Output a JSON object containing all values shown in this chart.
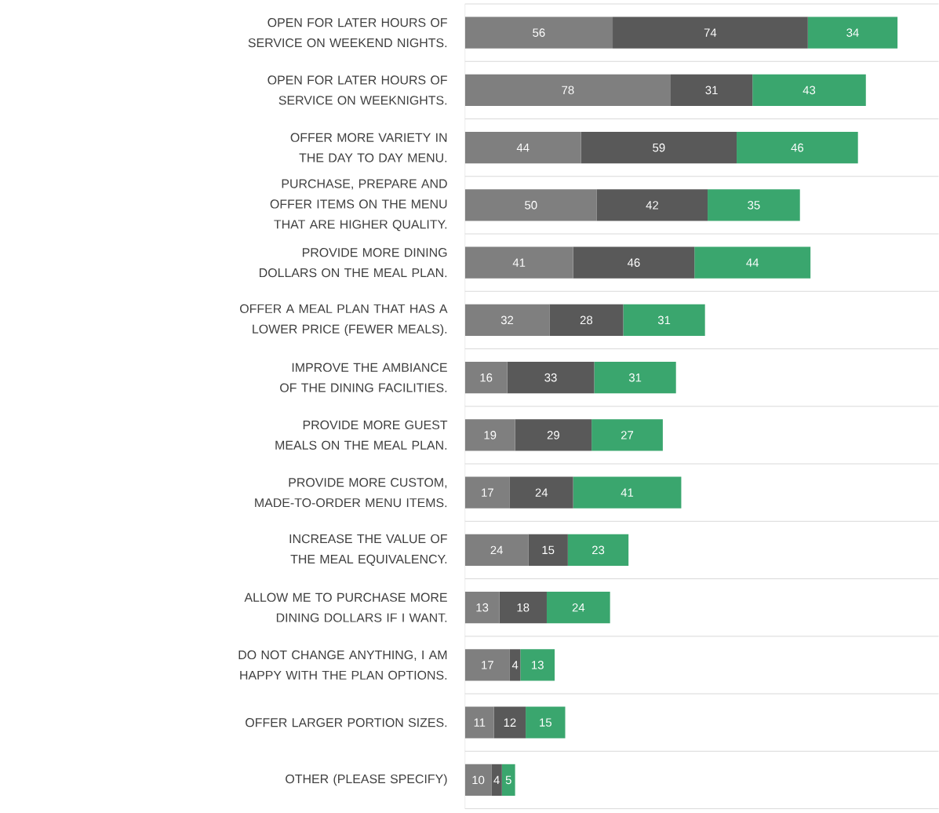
{
  "chart_data": {
    "type": "bar",
    "orientation": "horizontal",
    "stacked": true,
    "data_labels": true,
    "grid": "y",
    "categories": [
      "OPEN FOR LATER HOURS OF SERVICE ON WEEKEND NIGHTS.",
      "OPEN FOR LATER HOURS OF SERVICE ON WEEKNIGHTS.",
      "OFFER MORE VARIETY IN THE DAY TO DAY MENU.",
      "PURCHASE, PREPARE AND OFFER ITEMS ON THE MENU THAT ARE HIGHER QUALITY.",
      "PROVIDE MORE DINING DOLLARS ON THE MEAL PLAN.",
      "OFFER A MEAL PLAN THAT HAS A LOWER PRICE (FEWER MEALS).",
      "IMPROVE THE AMBIANCE OF THE DINING FACILITIES.",
      "PROVIDE MORE GUEST MEALS ON THE MEAL PLAN.",
      "PROVIDE MORE CUSTOM, MADE-TO-ORDER MENU ITEMS.",
      "INCREASE THE VALUE OF THE MEAL EQUIVALENCY.",
      "ALLOW ME TO PURCHASE MORE DINING DOLLARS IF I WANT.",
      "DO NOT CHANGE ANYTHING, I AM HAPPY WITH THE PLAN OPTIONS.",
      "OFFER LARGER PORTION SIZES.",
      "OTHER (PLEASE SPECIFY)"
    ],
    "series": [
      {
        "color": "#7f7f7f",
        "values": [
          56,
          78,
          44,
          50,
          41,
          32,
          16,
          19,
          17,
          24,
          13,
          17,
          11,
          10
        ]
      },
      {
        "color": "#595959",
        "values": [
          74,
          31,
          59,
          42,
          46,
          28,
          33,
          29,
          24,
          15,
          18,
          4,
          12,
          4
        ]
      },
      {
        "color": "#3aa66e",
        "values": [
          34,
          43,
          46,
          35,
          44,
          31,
          31,
          27,
          41,
          23,
          24,
          13,
          15,
          5
        ]
      }
    ]
  }
}
